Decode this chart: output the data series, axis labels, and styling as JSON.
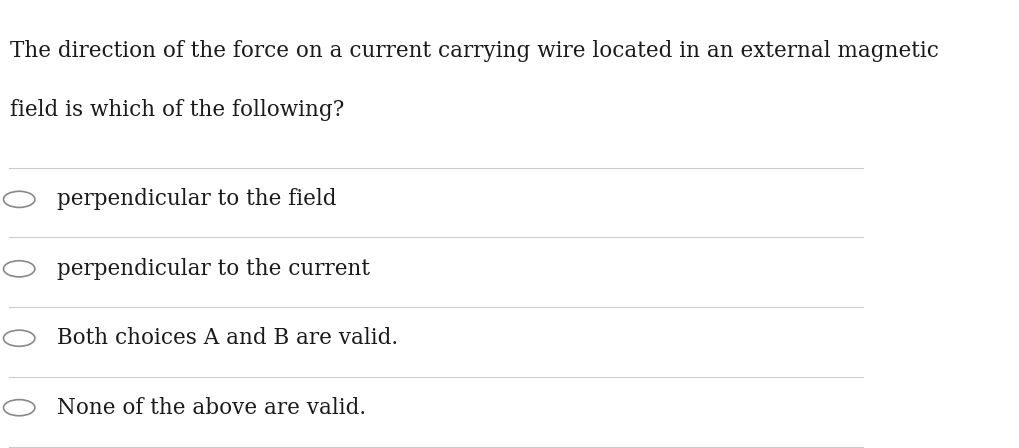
{
  "background_color": "#ffffff",
  "question_text_line1": "The direction of the force on a current carrying wire located in an external magnetic",
  "question_text_line2": "field is which of the following?",
  "choices": [
    "perpendicular to the field",
    "perpendicular to the current",
    "Both choices A and B are valid.",
    "None of the above are valid."
  ],
  "divider_color": "#cccccc",
  "text_color": "#1a1a1a",
  "circle_edge_color": "#888888",
  "question_fontsize": 15.5,
  "choice_fontsize": 15.5,
  "font_family": "serif"
}
